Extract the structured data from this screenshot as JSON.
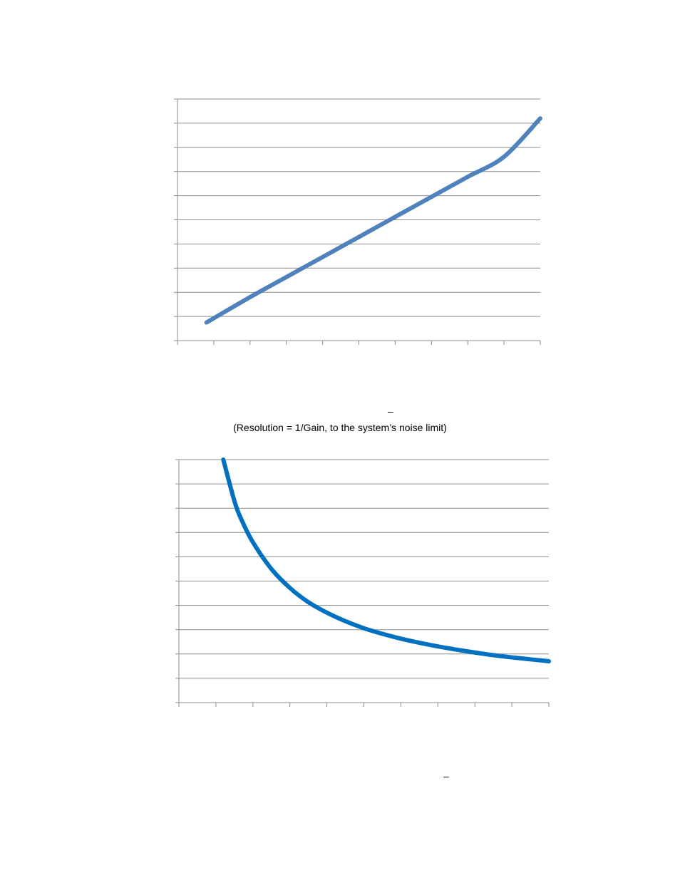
{
  "page": {
    "note": "(Resolution = 1/Gain, to the system’s noise limit)",
    "dash_1": "–",
    "dash_2": "–"
  },
  "chart_data": [
    {
      "type": "line",
      "title": "",
      "xlabel": "",
      "ylabel": "",
      "xlim": [
        0,
        10
      ],
      "ylim": [
        0,
        10
      ],
      "grid": true,
      "legend": "none",
      "color": "#4f81bd",
      "series": [
        {
          "x": [
            0.8,
            2,
            3,
            4,
            5,
            6,
            7,
            8,
            9,
            10
          ],
          "y": [
            0.75,
            1.8,
            2.63,
            3.46,
            4.29,
            5.12,
            5.95,
            6.78,
            7.61,
            9.2
          ]
        }
      ]
    },
    {
      "type": "line",
      "title": "",
      "xlabel": "",
      "ylabel": "",
      "xlim": [
        0,
        10
      ],
      "ylim": [
        0,
        10
      ],
      "grid": true,
      "legend": "none",
      "color": "#0070c0",
      "series": [
        {
          "x": [
            1.2,
            1.5,
            1.7,
            2,
            2.5,
            3,
            3.5,
            4,
            4.5,
            5,
            5.5,
            6,
            6.5,
            7,
            7.5,
            8,
            8.5,
            9,
            9.5,
            10
          ],
          "y": [
            10,
            8.3,
            7.5,
            6.6,
            5.5,
            4.72,
            4.13,
            3.7,
            3.35,
            3.06,
            2.83,
            2.63,
            2.46,
            2.31,
            2.18,
            2.06,
            1.95,
            1.86,
            1.78,
            1.7
          ]
        }
      ]
    }
  ]
}
